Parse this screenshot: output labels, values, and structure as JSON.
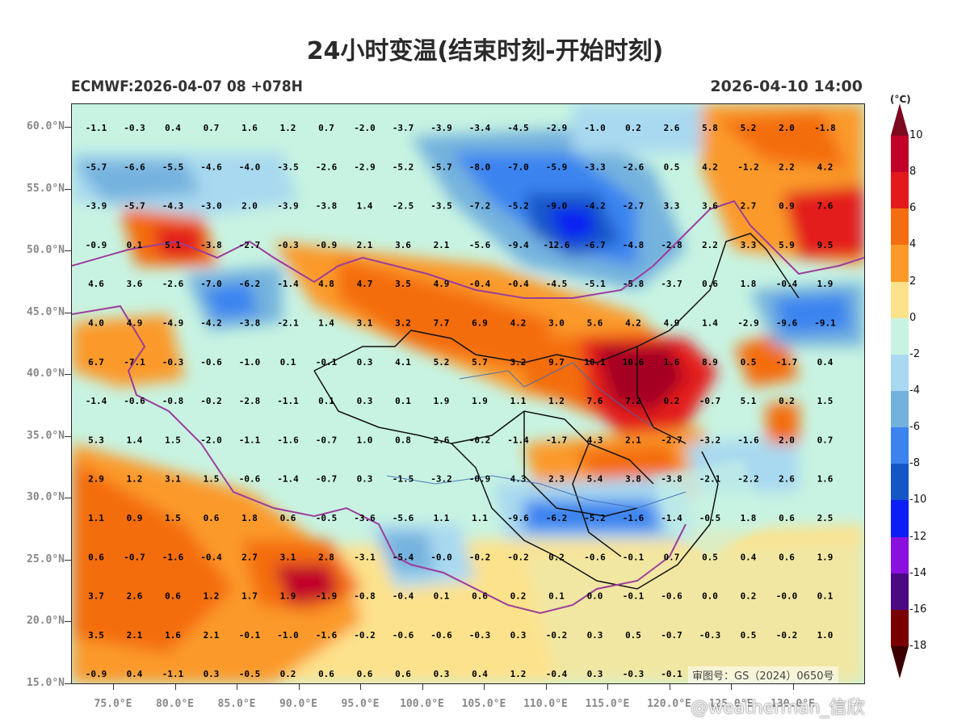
{
  "title": "24小时变温(结束时刻-开始时刻)",
  "model_run": "ECMWF:2026-04-07 08 +078H",
  "valid_time": "2026-04-10 14:00",
  "unit": "(°C)",
  "approval_no": "审图号：GS（2024）0650号",
  "watermark": "@weatherman_信欣",
  "lat_labels": [
    "60.0°N",
    "55.0°N",
    "50.0°N",
    "45.0°N",
    "40.0°N",
    "35.0°N",
    "30.0°N",
    "25.0°N",
    "20.0°N",
    "15.0°N"
  ],
  "lon_labels": [
    "75.0°E",
    "80.0°E",
    "85.0°E",
    "90.0°E",
    "95.0°E",
    "100.0°E",
    "105.0°E",
    "110.0°E",
    "115.0°E",
    "120.0°E",
    "125.0°E",
    "130.0°E"
  ],
  "colorbar": {
    "labels": [
      "10",
      "8",
      "6",
      "4",
      "2",
      "0",
      "-2",
      "-4",
      "-6",
      "-8",
      "-10",
      "-12",
      "-14",
      "-16",
      "-18"
    ],
    "colors": [
      "#7d0b1f",
      "#c1002a",
      "#e31a1c",
      "#f46d10",
      "#fb9a29",
      "#fde28c",
      "#c8f3e2",
      "#a9d9f0",
      "#74b2de",
      "#3b84f0",
      "#1456c8",
      "#0a1ef5",
      "#8a10e0",
      "#4b0a82",
      "#7a0000",
      "#3b0000"
    ]
  },
  "grid_values": [
    [
      "-1.1",
      "-0.3",
      "0.4",
      "0.7",
      "1.6",
      "1.2",
      "0.7",
      "-2.0",
      "-3.7",
      "-3.9",
      "-3.4",
      "-4.5",
      "-2.9",
      "-1.0",
      "0.2",
      "2.6",
      "5.8",
      "5.2",
      "2.0",
      "-1.8"
    ],
    [
      "-5.7",
      "-6.6",
      "-5.5",
      "-4.6",
      "-4.0",
      "-3.5",
      "-2.6",
      "-2.9",
      "-5.2",
      "-5.7",
      "-8.0",
      "-7.0",
      "-5.9",
      "-3.3",
      "-2.6",
      "0.5",
      "4.2",
      "-1.2",
      "2.2",
      "4.2"
    ],
    [
      "-3.9",
      "-5.7",
      "-4.3",
      "-3.0",
      "2.0",
      "-3.9",
      "-3.8",
      "1.4",
      "-2.5",
      "-3.5",
      "-7.2",
      "-5.2",
      "-9.0",
      "-4.2",
      "-2.7",
      "3.3",
      "3.6",
      "2.7",
      "0.9",
      "7.6"
    ],
    [
      "-0.9",
      "0.1",
      "5.1",
      "-3.8",
      "-2.7",
      "-0.3",
      "-0.9",
      "2.1",
      "3.6",
      "2.1",
      "-5.6",
      "-9.4",
      "-12.6",
      "-6.7",
      "-4.8",
      "-2.8",
      "2.2",
      "3.3",
      "5.9",
      "9.5"
    ],
    [
      "4.6",
      "3.6",
      "-2.6",
      "-7.0",
      "-6.2",
      "-1.4",
      "4.8",
      "4.7",
      "3.5",
      "4.9",
      "-0.4",
      "-0.4",
      "-4.5",
      "-5.1",
      "-5.8",
      "-3.7",
      "0.6",
      "1.8",
      "-0.4",
      "1.9"
    ],
    [
      "4.0",
      "4.9",
      "-4.9",
      "-4.2",
      "-3.8",
      "-2.1",
      "1.4",
      "3.1",
      "3.2",
      "7.7",
      "6.9",
      "4.2",
      "3.0",
      "5.6",
      "4.2",
      "4.9",
      "1.4",
      "-2.9",
      "-9.6",
      "-9.1"
    ],
    [
      "6.7",
      "-7.1",
      "-0.3",
      "-0.6",
      "-1.0",
      "0.1",
      "-0.1",
      "0.3",
      "4.1",
      "5.2",
      "5.7",
      "3.2",
      "9.7",
      "10.1",
      "10.6",
      "1.6",
      "8.9",
      "0.5",
      "-1.7",
      "0.4"
    ],
    [
      "-1.4",
      "-0.6",
      "-0.8",
      "-0.2",
      "-2.8",
      "-1.1",
      "0.1",
      "0.3",
      "0.1",
      "1.9",
      "1.9",
      "1.1",
      "1.2",
      "7.6",
      "7.2",
      "0.2",
      "-0.7",
      "5.1",
      "0.2",
      "1.5"
    ],
    [
      "5.3",
      "1.4",
      "1.5",
      "-2.0",
      "-1.1",
      "-1.6",
      "-0.7",
      "1.0",
      "0.8",
      "2.6",
      "-0.2",
      "-1.4",
      "-1.7",
      "4.3",
      "2.1",
      "-2.7",
      "-3.2",
      "-1.6",
      "2.0",
      "0.7"
    ],
    [
      "2.9",
      "1.2",
      "3.1",
      "1.5",
      "-0.6",
      "-1.4",
      "-0.7",
      "0.3",
      "-1.5",
      "-3.2",
      "-0.9",
      "4.3",
      "2.3",
      "5.4",
      "3.8",
      "-3.8",
      "-2.1",
      "-2.2",
      "2.6",
      "1.6"
    ],
    [
      "1.1",
      "0.9",
      "1.5",
      "0.6",
      "1.8",
      "0.6",
      "-0.5",
      "-3.6",
      "-5.6",
      "1.1",
      "1.1",
      "-9.6",
      "-6.2",
      "-5.2",
      "-1.6",
      "-1.4",
      "-0.5",
      "1.8",
      "0.6",
      "2.5"
    ],
    [
      "0.6",
      "-0.7",
      "-1.6",
      "-0.4",
      "2.7",
      "3.1",
      "2.8",
      "-3.1",
      "-5.4",
      "-0.0",
      "-0.2",
      "-0.2",
      "0.2",
      "-0.6",
      "-0.1",
      "0.7",
      "0.5",
      "0.4",
      "0.6",
      "1.9"
    ],
    [
      "3.7",
      "2.6",
      "0.6",
      "1.2",
      "1.7",
      "1.9",
      "-1.9",
      "-0.8",
      "-0.4",
      "0.1",
      "0.6",
      "0.2",
      "0.1",
      "0.0",
      "-0.1",
      "-0.6",
      "0.0",
      "0.2",
      "-0.0",
      "0.1"
    ],
    [
      "3.5",
      "2.1",
      "1.6",
      "2.1",
      "-0.1",
      "-1.0",
      "-1.6",
      "-0.2",
      "-0.6",
      "-0.6",
      "-0.3",
      "0.3",
      "-0.2",
      "0.3",
      "0.5",
      "-0.7",
      "-0.3",
      "0.5",
      "-0.2",
      "1.0"
    ],
    [
      "-0.9",
      "0.4",
      "-1.1",
      "0.3",
      "-0.5",
      "0.2",
      "0.6",
      "0.6",
      "0.6",
      "0.3",
      "0.4",
      "1.2",
      "-0.4",
      "0.3",
      "-0.3",
      "-0.1",
      "",
      "",
      "",
      ""
    ]
  ]
}
